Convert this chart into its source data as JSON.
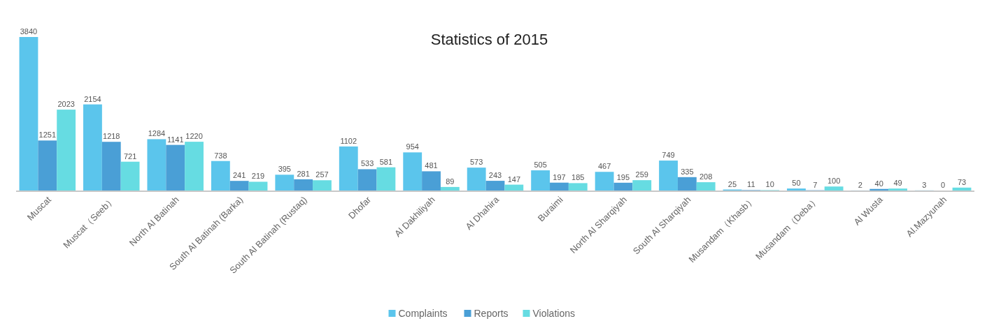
{
  "chart_data": {
    "type": "bar",
    "title": "Statistics of 2015",
    "categories": [
      "Muscat",
      "Muscat（Seeb）",
      "North Al Batinah",
      "South Al Batinah    (Barka)",
      "South Al Batinah    (Rustaq)",
      "Dhofar",
      "Al Dakhiliyah",
      "Al Dhahira",
      "Buraimi",
      "North Al Sharqiyah",
      "South Al Sharqiyah",
      "Musandam（Khasb）",
      "Musandam（Deba）",
      "Al Wusta",
      "Al.Mazyunah"
    ],
    "series": [
      {
        "name": "Complaints",
        "color": "#5bc5ec",
        "values": [
          3840,
          2154,
          1284,
          738,
          395,
          1102,
          954,
          573,
          505,
          467,
          749,
          25,
          50,
          2,
          3
        ]
      },
      {
        "name": "Reports",
        "color": "#4a9fd6",
        "values": [
          1251,
          1218,
          1141,
          241,
          281,
          533,
          481,
          243,
          197,
          195,
          335,
          11,
          7,
          40,
          0
        ]
      },
      {
        "name": "Violations",
        "color": "#66dce2",
        "values": [
          2023,
          721,
          1220,
          219,
          257,
          581,
          89,
          147,
          185,
          259,
          208,
          10,
          100,
          49,
          73
        ]
      }
    ],
    "data_labels": true,
    "legend": "bottom"
  }
}
